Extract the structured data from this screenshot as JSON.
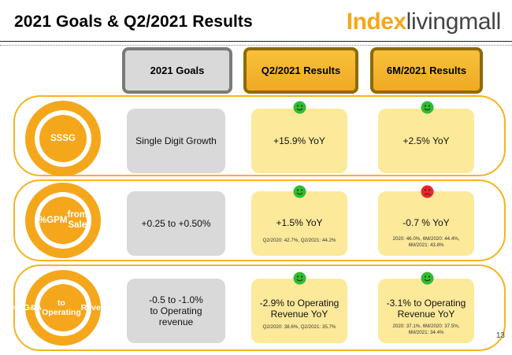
{
  "title": "2021 Goals & Q2/2021 Results",
  "logo": {
    "bold": "Index",
    "light": "livingmall"
  },
  "headers": {
    "goals": "2021 Goals",
    "q2": "Q2/2021 Results",
    "m6": "6M/2021 Results"
  },
  "rows": [
    {
      "metric": [
        "SSSG"
      ],
      "goal": [
        "Single Digit Growth"
      ],
      "q2": {
        "main": [
          "+15.9% YoY"
        ],
        "note": [],
        "status": "green"
      },
      "m6": {
        "main": [
          "+2.5% YoY"
        ],
        "note": [],
        "status": "green"
      }
    },
    {
      "metric": [
        "%GPM",
        "from Sale"
      ],
      "goal": [
        "+0.25 to +0.50%"
      ],
      "q2": {
        "main": [
          "+1.5% YoY"
        ],
        "note": [
          "Q2/2020: 42.7%, Q2/2021: 44.2%"
        ],
        "status": "green"
      },
      "m6": {
        "main": [
          "-0.7 % YoY"
        ],
        "note": [
          "2020: 46.0%, 6M/2020: 44.4%,",
          "6M/2021: 43.8%"
        ],
        "status": "red"
      }
    },
    {
      "metric": [
        "%SG&A",
        "to Operating",
        "Revenue"
      ],
      "goal": [
        "-0.5 to -1.0%",
        "to Operating",
        "revenue"
      ],
      "q2": {
        "main": [
          "-2.9% to Operating",
          "Revenue YoY"
        ],
        "note": [
          "Q2/2020: 38.6%, Q2/2021: 35.7%"
        ],
        "status": "green"
      },
      "m6": {
        "main": [
          "-3.1% to Operating",
          "Revenue YoY"
        ],
        "note": [
          "2020: 37.1%, 6M/2020: 37.5%,",
          "6M/2021: 34.4%"
        ],
        "status": "green"
      }
    }
  ],
  "page_number": "13",
  "colors": {
    "accent": "#f5a71c",
    "result_bg": "#fde99a",
    "goal_bg": "#d9d9d9",
    "status_green": "#2ebd2e",
    "status_red": "#e8262b"
  }
}
